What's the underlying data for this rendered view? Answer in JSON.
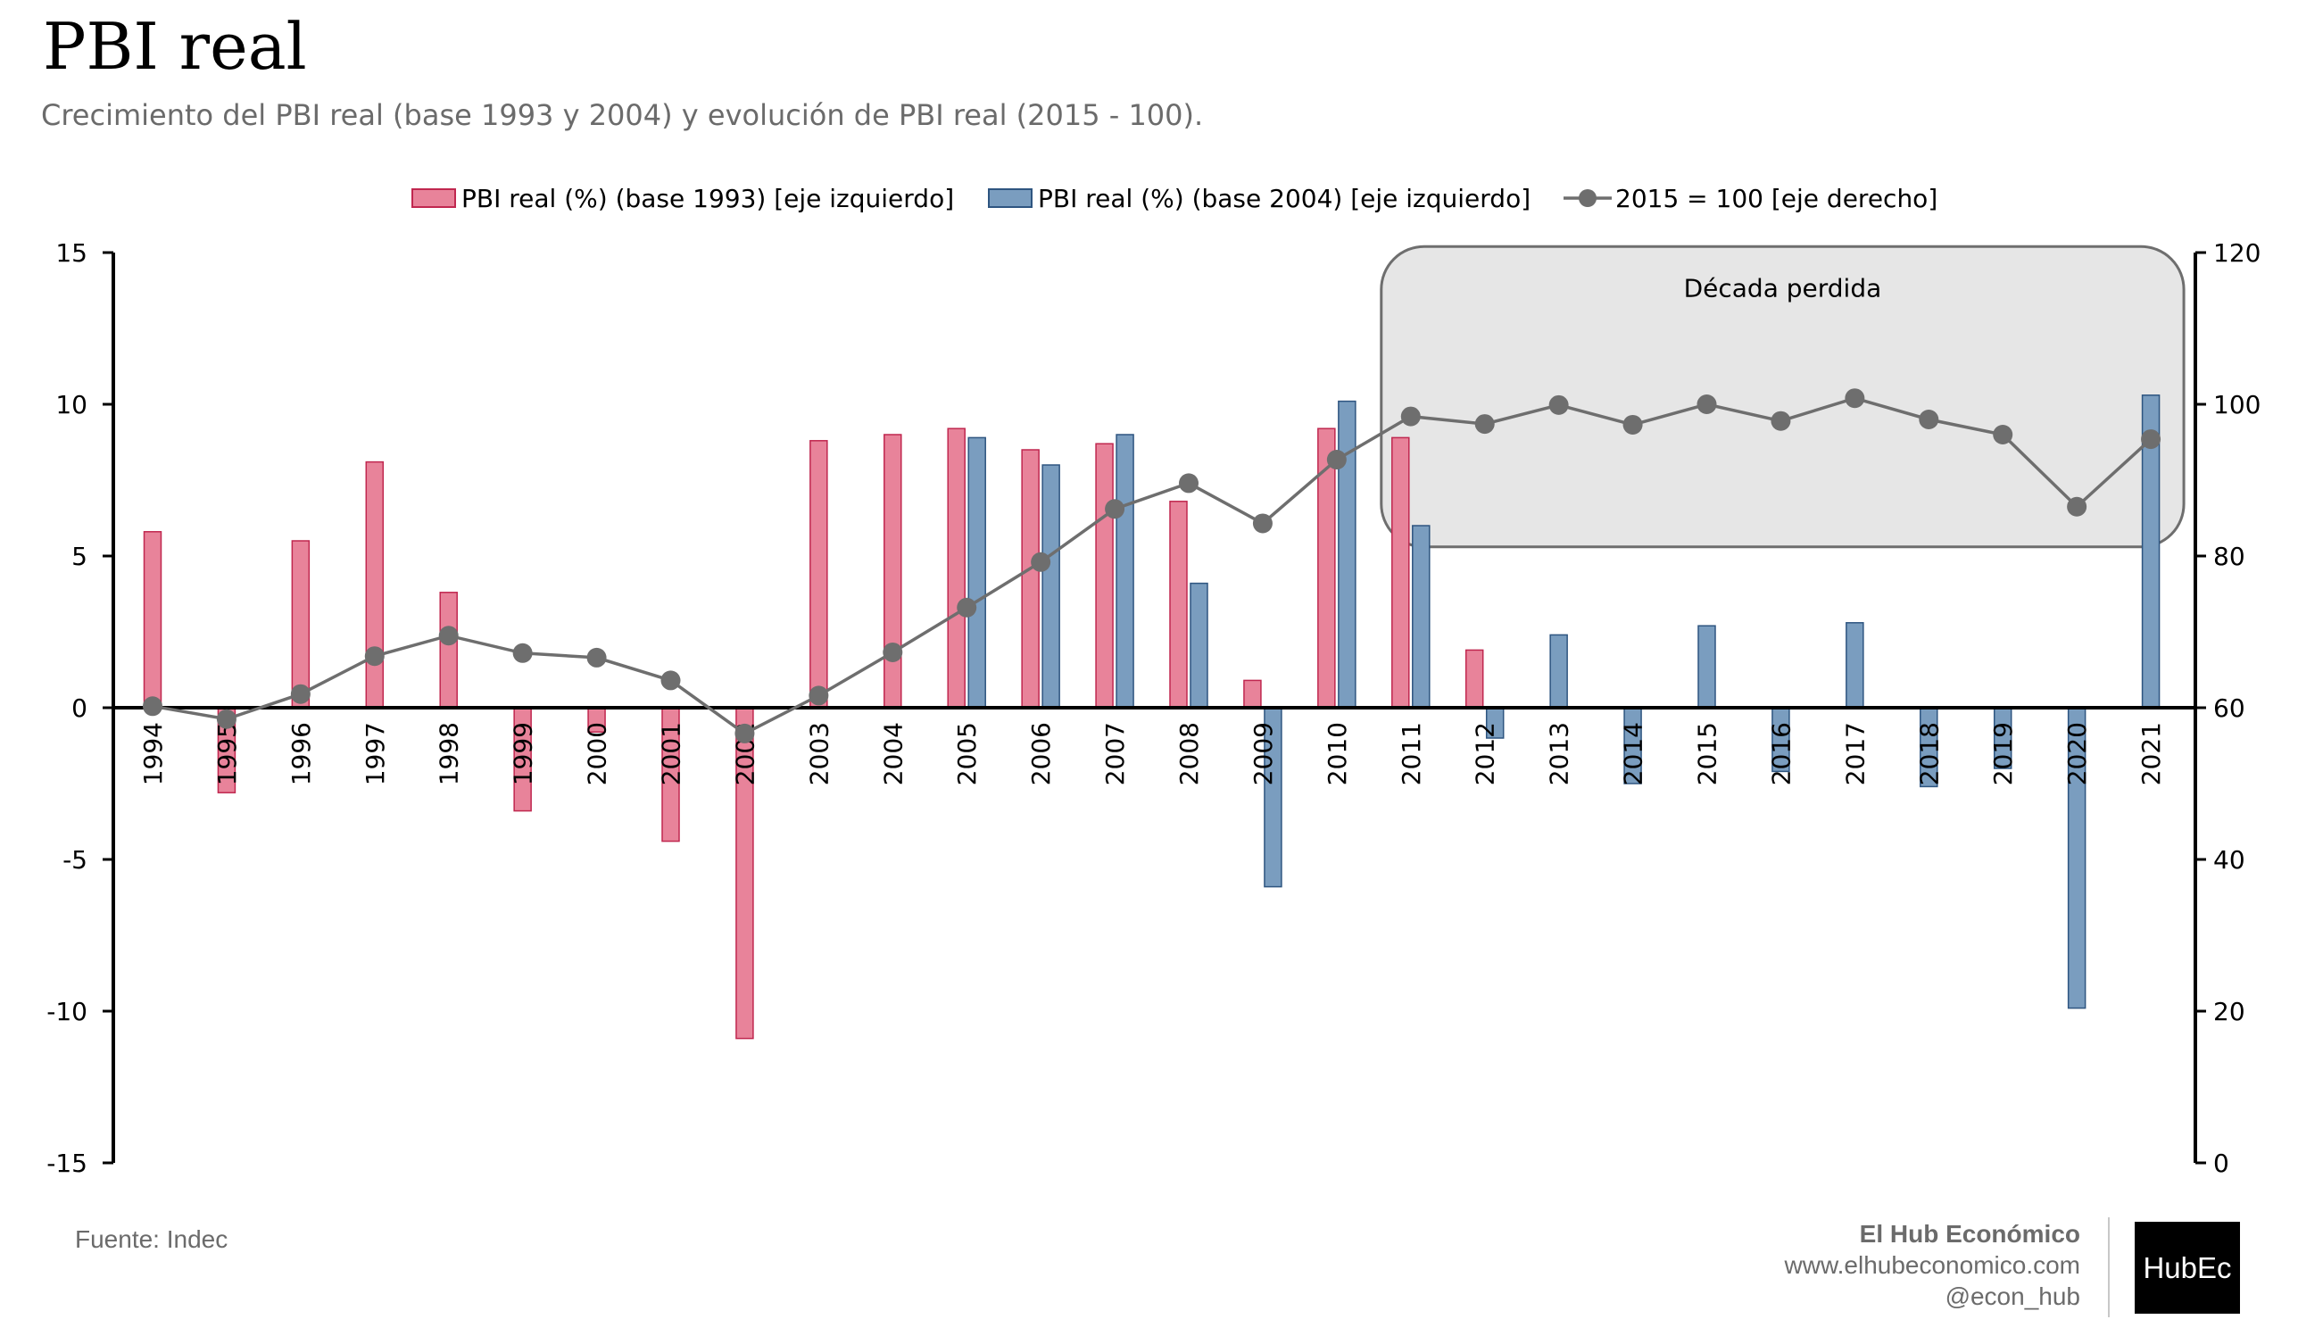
{
  "header": {
    "title": "PBI real",
    "subtitle": "Crecimiento del PBI real (base 1993 y 2004) y evolución de PBI real (2015 - 100)."
  },
  "footer": {
    "source": "Fuente: Indec",
    "brand_name": "El Hub Económico",
    "website": "www.elhubeconomico.com",
    "handle": "@econ_hub",
    "logo_text": "HubEc"
  },
  "colors": {
    "base1993_fill": "#e8839a",
    "base1993_stroke": "#c0274f",
    "base2004_fill": "#7a9dbf",
    "base2004_stroke": "#2e5580",
    "line": "#6e6e6e",
    "highlight_fill": "#e6e6e6",
    "highlight_stroke": "#6e6e6e"
  },
  "chart_data": {
    "type": "bar",
    "categories": [
      "1994",
      "1995",
      "1996",
      "1997",
      "1998",
      "1999",
      "2000",
      "2001",
      "2002",
      "2003",
      "2004",
      "2005",
      "2006",
      "2007",
      "2008",
      "2009",
      "2010",
      "2011",
      "2012",
      "2013",
      "2014",
      "2015",
      "2016",
      "2017",
      "2018",
      "2019",
      "2020",
      "2021"
    ],
    "series": [
      {
        "name": "PBI real (%) (base 1993) [eje izquierdo]",
        "type": "bar",
        "axis": "left",
        "values": [
          5.8,
          -2.8,
          5.5,
          8.1,
          3.8,
          -3.4,
          -0.8,
          -4.4,
          -10.9,
          8.8,
          9.0,
          9.2,
          8.5,
          8.7,
          6.8,
          0.9,
          9.2,
          8.9,
          1.9,
          null,
          null,
          null,
          null,
          null,
          null,
          null,
          null,
          null
        ]
      },
      {
        "name": "PBI real (%) (base 2004) [eje izquierdo]",
        "type": "bar",
        "axis": "left",
        "values": [
          null,
          null,
          null,
          null,
          null,
          null,
          null,
          null,
          null,
          null,
          null,
          8.9,
          8.0,
          9.0,
          4.1,
          -5.9,
          10.1,
          6.0,
          -1.0,
          2.4,
          -2.5,
          2.7,
          -2.1,
          2.8,
          -2.6,
          -2.0,
          -9.9,
          10.3
        ]
      },
      {
        "name": "2015 = 100 [eje derecho]",
        "type": "line",
        "axis": "right",
        "values": [
          60.2,
          58.5,
          61.8,
          66.8,
          69.5,
          67.2,
          66.6,
          63.6,
          56.6,
          61.6,
          67.3,
          73.2,
          79.2,
          86.2,
          89.6,
          84.3,
          92.7,
          98.4,
          97.4,
          99.9,
          97.3,
          100.0,
          97.8,
          100.8,
          98.0,
          96.0,
          86.5,
          95.4
        ]
      }
    ],
    "left_axis": {
      "min": -15,
      "max": 15,
      "ticks": [
        -15,
        -10,
        -5,
        0,
        5,
        10,
        15
      ]
    },
    "right_axis": {
      "min": 0,
      "max": 120,
      "ticks": [
        0,
        20,
        40,
        60,
        80,
        100,
        120
      ]
    },
    "legend_position": "top",
    "grid": false,
    "annotation": {
      "label": "Década perdida",
      "from": "2011",
      "to": "2021"
    }
  }
}
